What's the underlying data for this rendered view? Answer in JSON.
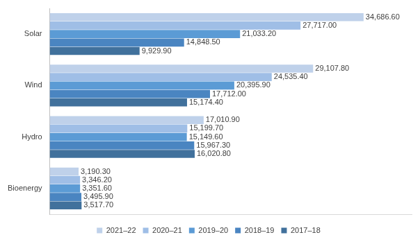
{
  "chart_data": {
    "type": "bar",
    "orientation": "horizontal",
    "categories": [
      "Solar",
      "Wind",
      "Hydro",
      "Bioenergy"
    ],
    "series": [
      {
        "name": "2021–22",
        "color": "#bfd1ea",
        "values": [
          34686.6,
          29107.8,
          17010.9,
          3190.3
        ],
        "value_labels": [
          "34,686.60",
          "29,107.80",
          "17,010.90",
          "3,190.30"
        ]
      },
      {
        "name": "2020–21",
        "color": "#9fbee6",
        "values": [
          27717.0,
          24535.4,
          15199.7,
          3346.2
        ],
        "value_labels": [
          "27,717.00",
          "24,535.40",
          "15,199.70",
          "3,346.20"
        ]
      },
      {
        "name": "2019–20",
        "color": "#5b9bd5",
        "values": [
          21033.2,
          20395.9,
          15149.6,
          3351.6
        ],
        "value_labels": [
          "21,033.20",
          "20,395.90",
          "15,149.60",
          "3,351.60"
        ]
      },
      {
        "name": "2018–19",
        "color": "#4a85c1",
        "values": [
          14848.5,
          17712.0,
          15967.3,
          3495.9
        ],
        "value_labels": [
          "14,848.50",
          "17,712.00",
          "15,967.30",
          "3,495.90"
        ]
      },
      {
        "name": "2017–18",
        "color": "#41719c",
        "values": [
          9929.9,
          15174.4,
          16020.8,
          3517.7
        ],
        "value_labels": [
          "9,929.90",
          "15,174.40",
          "16,020.80",
          "3,517.70"
        ]
      }
    ],
    "xlim": [
      0,
      40000
    ],
    "tick_labels": "y",
    "data_labels": true,
    "legend": "bottom",
    "grid": false
  }
}
